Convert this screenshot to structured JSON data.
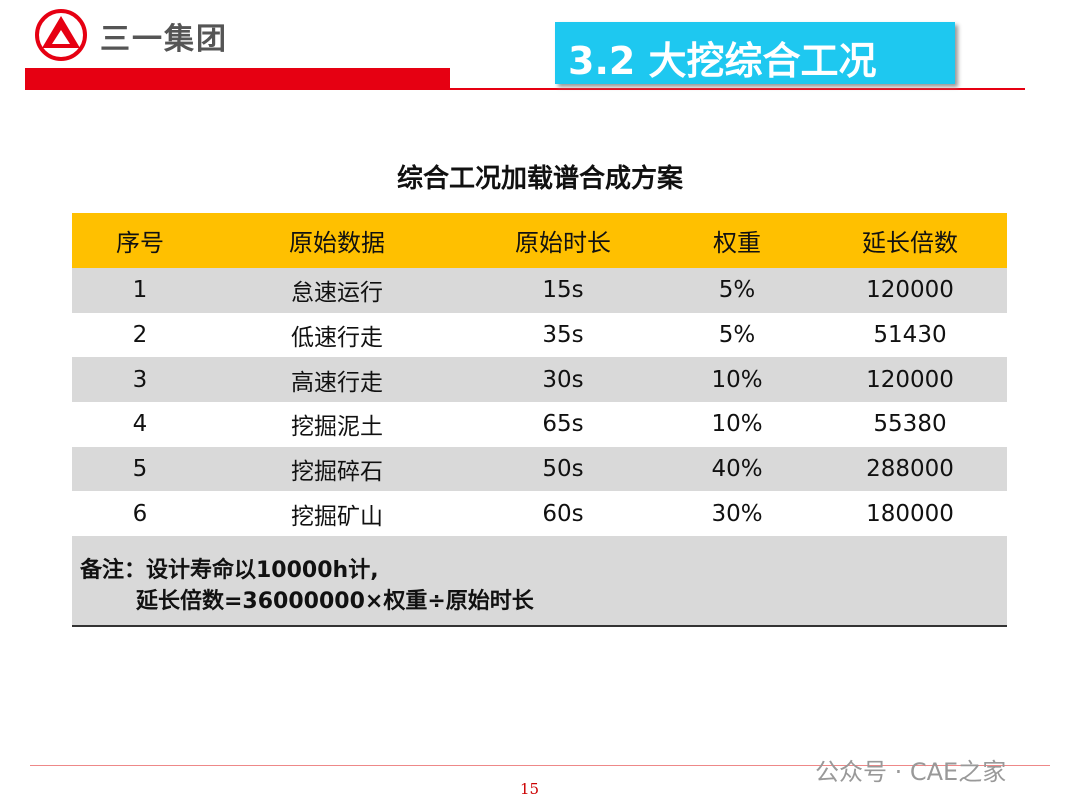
{
  "header": {
    "logo_text": "三一集团",
    "section_title": "3.2 大挖综合工况"
  },
  "table": {
    "title": "综合工况加载谱合成方案",
    "columns": [
      "序号",
      "原始数据",
      "原始时长",
      "权重",
      "延长倍数"
    ],
    "rows": [
      [
        "1",
        "怠速运行",
        "15s",
        "5%",
        "120000"
      ],
      [
        "2",
        "低速行走",
        "35s",
        "5%",
        "51430"
      ],
      [
        "3",
        "高速行走",
        "30s",
        "10%",
        "120000"
      ],
      [
        "4",
        "挖掘泥土",
        "65s",
        "10%",
        "55380"
      ],
      [
        "5",
        "挖掘碎石",
        "50s",
        "40%",
        "288000"
      ],
      [
        "6",
        "挖掘矿山",
        "60s",
        "30%",
        "180000"
      ]
    ],
    "notes": [
      "备注：设计寿命以10000h计,",
      "延长倍数=36000000×权重÷原始时长"
    ]
  },
  "footer": {
    "page_number": "15",
    "watermark": "公众号 · CAE之家"
  }
}
